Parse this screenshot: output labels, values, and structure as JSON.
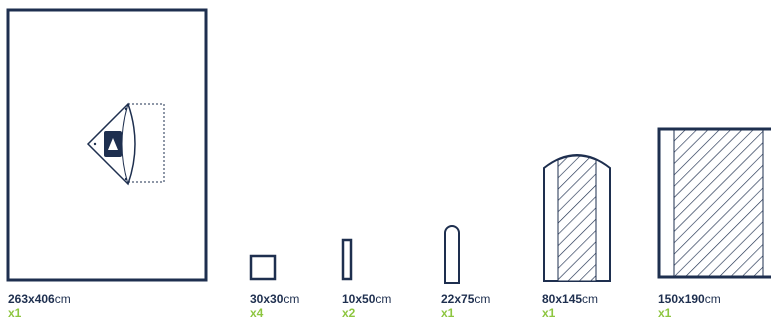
{
  "colors": {
    "outline": "#1e2f4f",
    "quantity": "#8dc63f",
    "hatch": "#1e2f4f",
    "background": "#ffffff"
  },
  "items": [
    {
      "size": "263x406",
      "unit": "cm",
      "qty": "x1"
    },
    {
      "size": "30x30",
      "unit": "cm",
      "qty": "x4"
    },
    {
      "size": "10x50",
      "unit": "cm",
      "qty": "x2"
    },
    {
      "size": "22x75",
      "unit": "cm",
      "qty": "x1"
    },
    {
      "size": "80x145",
      "unit": "cm",
      "qty": "x1"
    },
    {
      "size": "150x190",
      "unit": "cm",
      "qty": "x1"
    }
  ]
}
